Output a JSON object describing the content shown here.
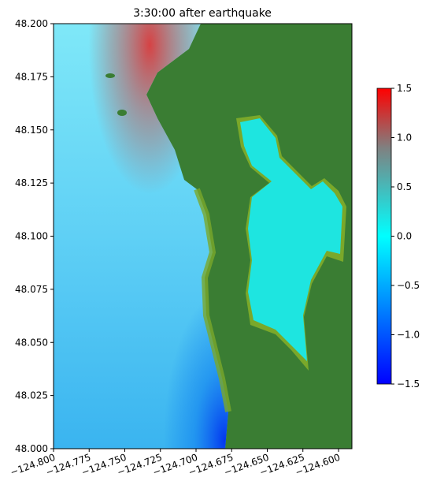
{
  "chart_data": {
    "type": "image",
    "title": "3:30:00 after earthquake",
    "xlim": [
      -124.8,
      -124.5906
    ],
    "ylim": [
      48.0,
      48.2
    ],
    "xticks": [
      {
        "value": -124.8,
        "label": "−124.800"
      },
      {
        "value": -124.775,
        "label": "−124.775"
      },
      {
        "value": -124.75,
        "label": "−124.750"
      },
      {
        "value": -124.725,
        "label": "−124.725"
      },
      {
        "value": -124.7,
        "label": "−124.700"
      },
      {
        "value": -124.675,
        "label": "−124.675"
      },
      {
        "value": -124.65,
        "label": "−124.650"
      },
      {
        "value": -124.625,
        "label": "−124.625"
      },
      {
        "value": -124.6,
        "label": "−124.600"
      }
    ],
    "yticks": [
      {
        "value": 48.0,
        "label": "48.000"
      },
      {
        "value": 48.025,
        "label": "48.025"
      },
      {
        "value": 48.05,
        "label": "48.050"
      },
      {
        "value": 48.075,
        "label": "48.075"
      },
      {
        "value": 48.1,
        "label": "48.100"
      },
      {
        "value": 48.125,
        "label": "48.125"
      },
      {
        "value": 48.15,
        "label": "48.150"
      },
      {
        "value": 48.175,
        "label": "48.175"
      },
      {
        "value": 48.2,
        "label": "48.200"
      }
    ],
    "clim": [
      -1.5,
      1.5
    ],
    "cticks": [
      {
        "value": -1.5,
        "label": "−1.5"
      },
      {
        "value": -1.0,
        "label": "−1.0"
      },
      {
        "value": -0.5,
        "label": "−0.5"
      },
      {
        "value": 0.0,
        "label": "0.0"
      },
      0.5,
      {
        "value": 1.0,
        "label": "1.0"
      },
      1.5
    ]
  }
}
